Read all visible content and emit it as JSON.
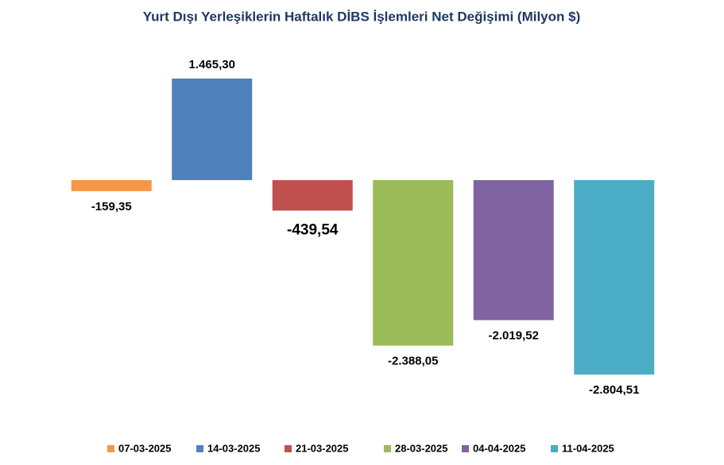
{
  "chart_data": {
    "type": "bar",
    "title": "Yurt Dışı Yerleşiklerin Haftalık DİBS İşlemleri Net Değişimi (Milyon $)",
    "categories": [
      "07-03-2025",
      "14-03-2025",
      "21-03-2025",
      "28-03-2025",
      "04-04-2025",
      "11-04-2025"
    ],
    "values": [
      -159.35,
      1465.3,
      -439.54,
      -2388.05,
      -2019.52,
      -2804.51
    ],
    "value_labels": [
      "-159,35",
      "1.465,30",
      "-439,54",
      "-2.388,05",
      "-2.019,52",
      "-2.804,51"
    ],
    "colors": [
      "#f79646",
      "#4f81bd",
      "#c0504d",
      "#9bbb59",
      "#8064a2",
      "#4bacc6"
    ],
    "legend": "bottom"
  }
}
